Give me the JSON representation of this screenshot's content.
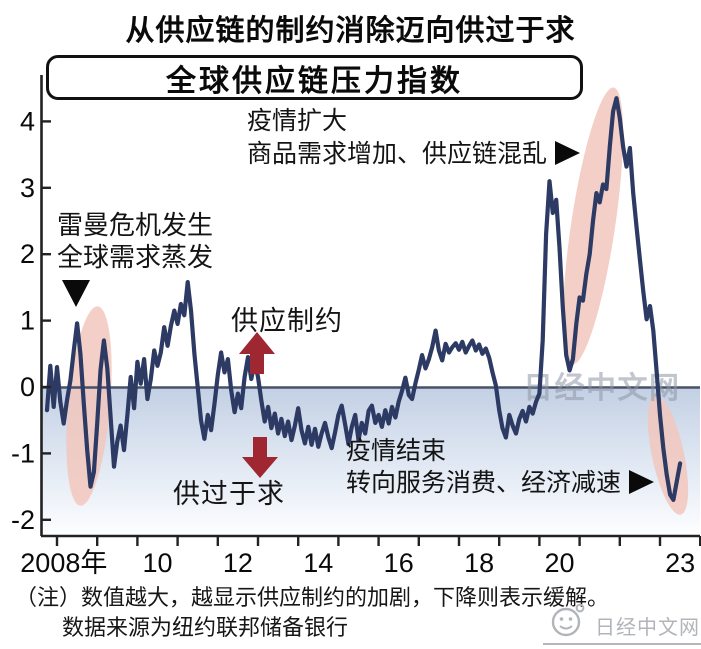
{
  "title": "从供应链的制约消除迈向供过于求",
  "subtitle": "全球供应链压力指数",
  "annotations": {
    "pandemic_expand": {
      "line1": "疫情扩大",
      "line2": "商品需求增加、供应链混乱"
    },
    "lehman": {
      "line1": "雷曼危机发生",
      "line2": "全球需求蒸发"
    },
    "supply_constraint": "供应制约",
    "oversupply": "供过于求",
    "pandemic_end": {
      "line1": "疫情结束",
      "line2": "转向服务消费、经济减速"
    }
  },
  "watermark": "日经中文网",
  "note": {
    "line1": "（注）数值越大，越显示供应制约的加剧，下降则表示缓解。",
    "line2": "数据来源为纽约联邦储备银行"
  },
  "logo": {
    "text": "日经中文网"
  },
  "colors": {
    "line": "#2c3a64",
    "zero_line": "#475168",
    "highlight_ellipse": "#f2c7bd",
    "arrow_red": "#9f2732",
    "gradient_top": "#c3d0e4",
    "gradient_bottom": "#fdfeff",
    "watermark_gray": "#8f96a4",
    "logo_gray": "#b1b4b9"
  },
  "chart_data": {
    "type": "line",
    "title": "全球供应链压力指数",
    "series_name": "全球供应链压力指数",
    "x_start": 2007.75,
    "x_step_months": 1,
    "ylim": [
      -2.4,
      4.6
    ],
    "xlim": [
      2007.6,
      2024.0
    ],
    "grid": false,
    "y_ticks": [
      4,
      3,
      2,
      1,
      0,
      -1,
      -2
    ],
    "x_axis_year_ticks": [
      2008,
      2009,
      2010,
      2011,
      2012,
      2013,
      2014,
      2015,
      2016,
      2017,
      2018,
      2019,
      2020,
      2021,
      2022,
      2023,
      2024
    ],
    "x_tick_labels": [
      "2008年",
      "10",
      "12",
      "14",
      "16",
      "18",
      "20",
      "23"
    ],
    "x_tick_label_years": [
      2008.17,
      2010.5,
      2012.5,
      2014.5,
      2016.5,
      2018.5,
      2020.5,
      2023.5
    ],
    "highlighted_periods": [
      {
        "label": "雷曼危机发生 全球需求蒸发",
        "x_range": [
          2008.4,
          2009.2
        ]
      },
      {
        "label": "疫情扩大 商品需求增加、供应链混乱",
        "x_range": [
          2020.9,
          2022.0
        ]
      },
      {
        "label": "疫情结束 转向服务消费、经济减速",
        "x_range": [
          2022.9,
          2023.5
        ]
      }
    ],
    "values": [
      -0.35,
      0.32,
      -0.3,
      0.3,
      -0.22,
      -0.55,
      -0.2,
      0.1,
      0.55,
      0.96,
      0.5,
      -0.25,
      -0.95,
      -1.5,
      -1.28,
      -0.55,
      0.25,
      0.7,
      0.28,
      -0.45,
      -1.2,
      -0.82,
      -0.58,
      -0.95,
      -0.42,
      0.15,
      -0.32,
      0.38,
      0.05,
      0.42,
      -0.18,
      0.12,
      0.55,
      0.32,
      0.52,
      0.9,
      0.62,
      0.92,
      1.15,
      0.95,
      1.25,
      1.08,
      1.58,
      1.15,
      0.5,
      0.0,
      -0.5,
      -0.78,
      -0.42,
      -0.65,
      -0.25,
      0.18,
      0.52,
      0.22,
      0.42,
      -0.05,
      -0.38,
      -0.1,
      -0.32,
      0.15,
      0.45,
      0.12,
      0.38,
      0.15,
      -0.2,
      -0.52,
      -0.3,
      -0.62,
      -0.4,
      -0.7,
      -0.48,
      -0.74,
      -0.52,
      -0.8,
      -0.58,
      -0.32,
      -0.65,
      -0.85,
      -0.6,
      -0.87,
      -0.63,
      -0.9,
      -0.7,
      -0.54,
      -0.76,
      -0.92,
      -0.68,
      -0.42,
      -0.28,
      -0.56,
      -0.86,
      -0.6,
      -0.42,
      -0.8,
      -0.54,
      -0.7,
      -0.36,
      -0.28,
      -0.54,
      -0.42,
      -0.6,
      -0.35,
      -0.55,
      -0.3,
      -0.46,
      -0.22,
      -0.06,
      0.14,
      -0.12,
      -0.18,
      0.06,
      0.26,
      0.48,
      0.28,
      0.42,
      0.6,
      0.85,
      0.55,
      0.4,
      0.65,
      0.52,
      0.6,
      0.66,
      0.56,
      0.68,
      0.52,
      0.62,
      0.7,
      0.55,
      0.64,
      0.5,
      0.58,
      0.44,
      0.22,
      0.02,
      -0.35,
      -0.62,
      -0.76,
      -0.42,
      -0.58,
      -0.7,
      -0.48,
      -0.36,
      -0.52,
      -0.3,
      -0.4,
      -0.22,
      -0.1,
      0.7,
      2.3,
      3.1,
      2.62,
      2.82,
      2.1,
      1.2,
      0.48,
      0.25,
      0.42,
      0.95,
      1.35,
      1.3,
      1.7,
      2.0,
      2.5,
      2.92,
      2.78,
      3.05,
      2.98,
      3.62,
      4.15,
      4.35,
      4.05,
      3.62,
      3.32,
      3.6,
      2.92,
      2.4,
      1.92,
      1.45,
      1.02,
      1.22,
      0.85,
      0.22,
      -0.42,
      -0.92,
      -1.32,
      -1.62,
      -1.7,
      -1.42,
      -1.15
    ]
  }
}
